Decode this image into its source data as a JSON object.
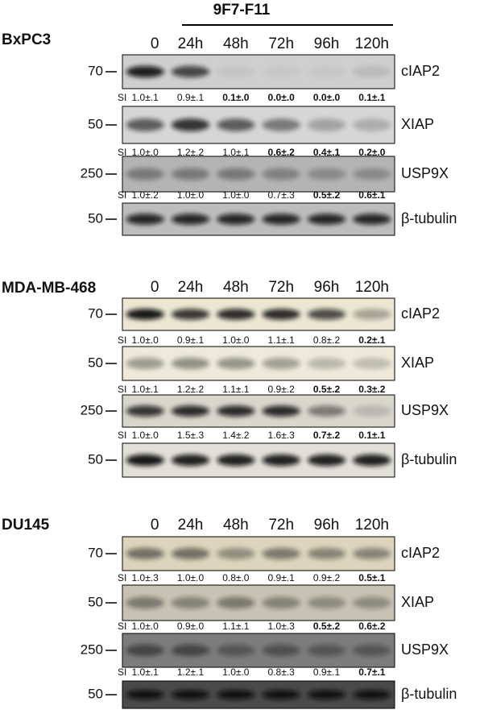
{
  "treatment": "9F7-F11",
  "si_label": "SI",
  "panels": [
    {
      "cell_line": "BxPC3",
      "lanes": [
        "0",
        "24h",
        "48h",
        "72h",
        "96h",
        "120h"
      ],
      "blots": [
        {
          "mw": "70",
          "protein": "cIAP2",
          "si": [
            "1.0±.1",
            "0.9±.1",
            "0.1±.0",
            "0.0±.0",
            "0.0±.0",
            "0.1±.1"
          ],
          "si_bold": [
            false,
            false,
            true,
            true,
            true,
            true
          ]
        },
        {
          "mw": "50",
          "protein": "XIAP",
          "si": [
            "1.0±.0",
            "1.2±.2",
            "1.0±.1",
            "0.6±.2",
            "0.4±.1",
            "0.2±.0"
          ],
          "si_bold": [
            false,
            false,
            false,
            true,
            true,
            true
          ]
        },
        {
          "mw": "250",
          "protein": "USP9X",
          "si": [
            "1.0±.2",
            "1.0±.0",
            "1.0±.0",
            "0.7±.3",
            "0.5±.2",
            "0.6±.1"
          ],
          "si_bold": [
            false,
            false,
            false,
            false,
            true,
            true
          ]
        },
        {
          "mw": "50",
          "protein": "β-tubulin"
        }
      ]
    },
    {
      "cell_line": "MDA-MB-468",
      "lanes": [
        "0",
        "24h",
        "48h",
        "72h",
        "96h",
        "120h"
      ],
      "blots": [
        {
          "mw": "70",
          "protein": "cIAP2",
          "si": [
            "1.0±.0",
            "0.9±.1",
            "1.0±.0",
            "1.1±.1",
            "0.8±.2",
            "0.2±.1"
          ],
          "si_bold": [
            false,
            false,
            false,
            false,
            false,
            true
          ]
        },
        {
          "mw": "50",
          "protein": "XIAP",
          "si": [
            "1.0±.1",
            "1.2±.2",
            "1.1±.1",
            "0.9±.2",
            "0.5±.2",
            "0.3±.2"
          ],
          "si_bold": [
            false,
            false,
            false,
            false,
            true,
            true
          ]
        },
        {
          "mw": "250",
          "protein": "USP9X",
          "si": [
            "1.0±.0",
            "1.5±.3",
            "1.4±.2",
            "1.6±.3",
            "0.7±.2",
            "0.1±.1"
          ],
          "si_bold": [
            false,
            false,
            false,
            false,
            true,
            true
          ]
        },
        {
          "mw": "50",
          "protein": "β-tubulin"
        }
      ]
    },
    {
      "cell_line": "DU145",
      "lanes": [
        "0",
        "24h",
        "48h",
        "72h",
        "96h",
        "120h"
      ],
      "blots": [
        {
          "mw": "70",
          "protein": "cIAP2",
          "si": [
            "1.0±.3",
            "1.0±.0",
            "0.8±.0",
            "0.9±.1",
            "0.9±.2",
            "0.5±.1"
          ],
          "si_bold": [
            false,
            false,
            false,
            false,
            false,
            true
          ]
        },
        {
          "mw": "50",
          "protein": "XIAP",
          "si": [
            "1.0±.0",
            "0.9±.0",
            "1.1±.1",
            "1.0±.3",
            "0.5±.2",
            "0.6±.2"
          ],
          "si_bold": [
            false,
            false,
            false,
            false,
            true,
            true
          ]
        },
        {
          "mw": "250",
          "protein": "USP9X",
          "si": [
            "1.0±.1",
            "1.2±.1",
            "1.0±.0",
            "0.8±.3",
            "0.9±.1",
            "0.7±.1"
          ],
          "si_bold": [
            false,
            false,
            false,
            false,
            false,
            true
          ]
        },
        {
          "mw": "50",
          "protein": "β-tubulin"
        }
      ]
    }
  ]
}
